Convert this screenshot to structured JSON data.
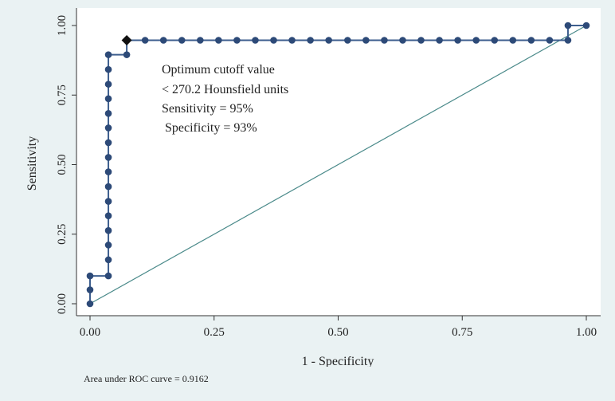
{
  "chart_data": {
    "type": "line",
    "title": "",
    "xlabel": "1 - Specificity",
    "ylabel": "Sensitivity",
    "xlim": [
      0,
      1
    ],
    "ylim": [
      0,
      1
    ],
    "x_ticks": [
      "0.00",
      "0.25",
      "0.50",
      "0.75",
      "1.00"
    ],
    "y_ticks": [
      "0.00",
      "0.25",
      "0.50",
      "0.75",
      "1.00"
    ],
    "grid": false,
    "colors": {
      "curve": "#3d5e8e",
      "marker": "#2d4a78",
      "reference": "#4a8a8a",
      "optimum_marker": "#111111",
      "plot_bg": "#ffffff",
      "page_bg": "#eaf2f3"
    },
    "roc_points": [
      [
        0.0,
        0.0
      ],
      [
        0.0,
        0.05
      ],
      [
        0.0,
        0.1
      ],
      [
        0.037,
        0.1
      ],
      [
        0.037,
        0.158
      ],
      [
        0.037,
        0.211
      ],
      [
        0.037,
        0.263
      ],
      [
        0.037,
        0.316
      ],
      [
        0.037,
        0.368
      ],
      [
        0.037,
        0.421
      ],
      [
        0.037,
        0.474
      ],
      [
        0.037,
        0.526
      ],
      [
        0.037,
        0.579
      ],
      [
        0.037,
        0.632
      ],
      [
        0.037,
        0.684
      ],
      [
        0.037,
        0.737
      ],
      [
        0.037,
        0.789
      ],
      [
        0.037,
        0.842
      ],
      [
        0.037,
        0.895
      ],
      [
        0.074,
        0.895
      ],
      [
        0.074,
        0.947
      ],
      [
        0.111,
        0.947
      ],
      [
        0.148,
        0.947
      ],
      [
        0.185,
        0.947
      ],
      [
        0.222,
        0.947
      ],
      [
        0.259,
        0.947
      ],
      [
        0.296,
        0.947
      ],
      [
        0.333,
        0.947
      ],
      [
        0.37,
        0.947
      ],
      [
        0.407,
        0.947
      ],
      [
        0.444,
        0.947
      ],
      [
        0.481,
        0.947
      ],
      [
        0.519,
        0.947
      ],
      [
        0.556,
        0.947
      ],
      [
        0.593,
        0.947
      ],
      [
        0.63,
        0.947
      ],
      [
        0.667,
        0.947
      ],
      [
        0.704,
        0.947
      ],
      [
        0.741,
        0.947
      ],
      [
        0.778,
        0.947
      ],
      [
        0.815,
        0.947
      ],
      [
        0.852,
        0.947
      ],
      [
        0.889,
        0.947
      ],
      [
        0.926,
        0.947
      ],
      [
        0.963,
        0.947
      ],
      [
        0.963,
        1.0
      ],
      [
        1.0,
        1.0
      ]
    ],
    "optimum_point": [
      0.074,
      0.947
    ],
    "reference_line": [
      [
        0,
        0
      ],
      [
        1,
        1
      ]
    ],
    "annotation_lines": [
      "Optimum cutoff value",
      "< 270.2 Hounsfield units",
      "Sensitivity = 95%",
      " Specificity = 93%"
    ]
  },
  "footnote": "Area under ROC curve = 0.9162"
}
